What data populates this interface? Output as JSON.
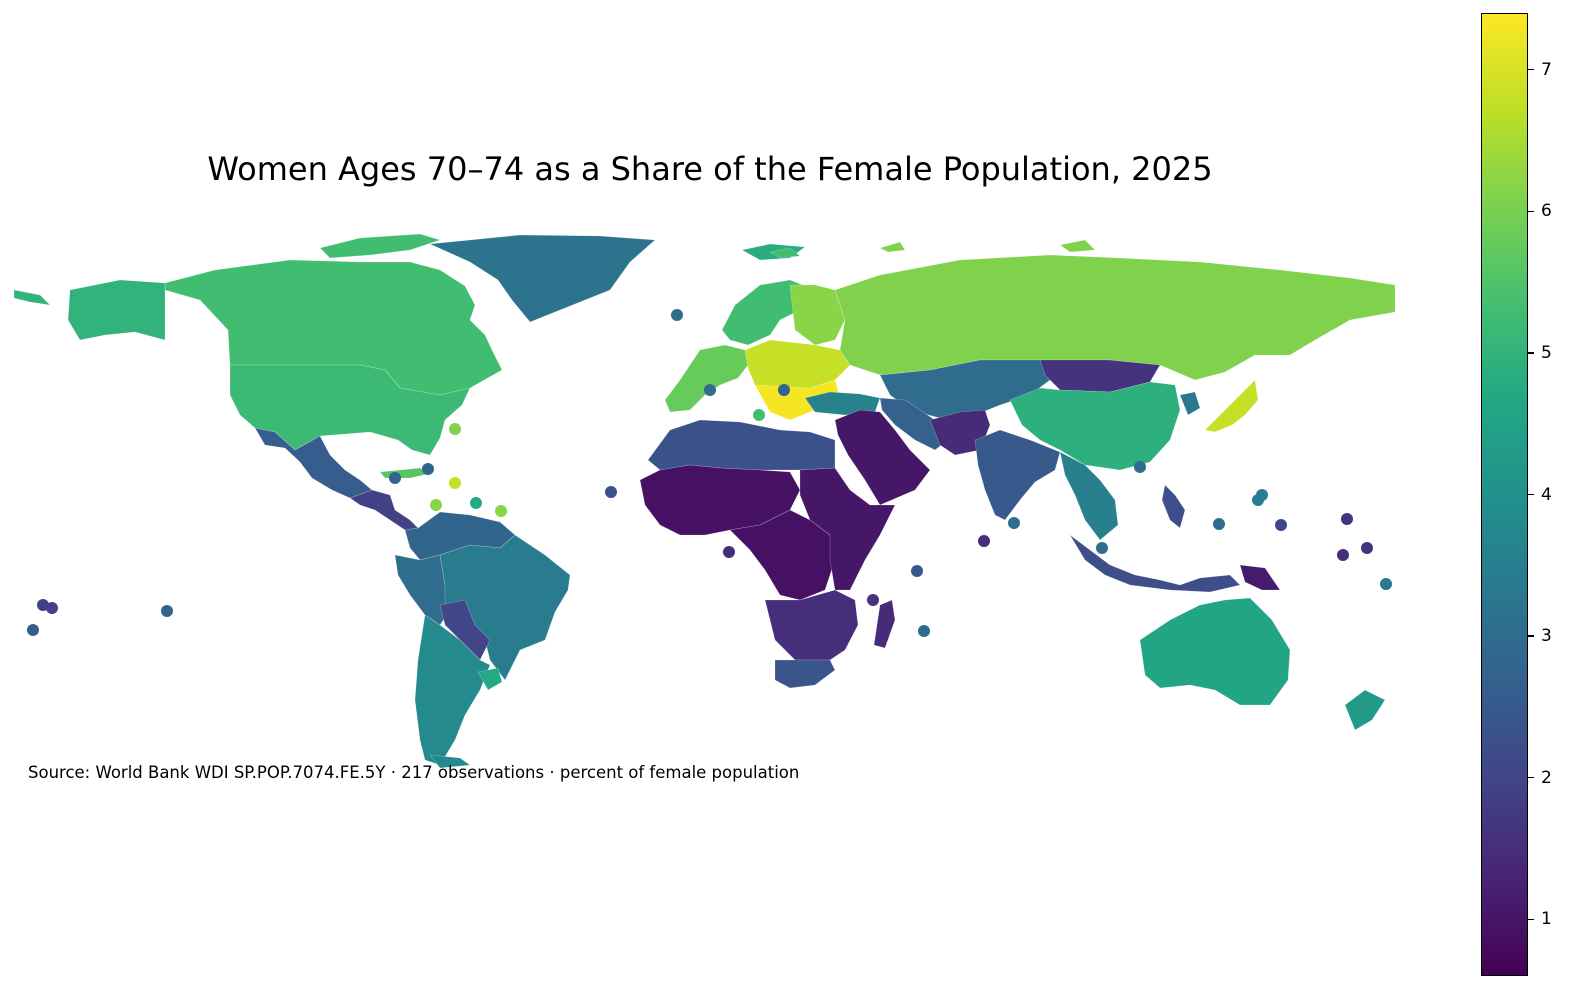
{
  "title": "Women Ages 70–74 as a Share of the Female Population, 2025",
  "source_note": "Source: World Bank WDI SP.POP.7074.FE.5Y · 217 observations · percent of female population",
  "colorbar": {
    "colormap": "viridis",
    "min": 0.6,
    "max": 7.4,
    "ticks": [
      {
        "value": 1,
        "label": "1"
      },
      {
        "value": 2,
        "label": "2"
      },
      {
        "value": 3,
        "label": "3"
      },
      {
        "value": 4,
        "label": "4"
      },
      {
        "value": 5,
        "label": "5"
      },
      {
        "value": 6,
        "label": "6"
      },
      {
        "value": 7,
        "label": "7"
      }
    ]
  },
  "chart_data": {
    "type": "choropleth",
    "title": "Women Ages 70–74 as a Share of the Female Population, 2025",
    "unit": "percent of female population",
    "observations": 217,
    "value_range": [
      0.6,
      7.4
    ],
    "regions": [
      {
        "region": "Greenland",
        "value": 3.2
      },
      {
        "region": "Canada",
        "value": 5.3
      },
      {
        "region": "Alaska (USA)",
        "value": 5.0
      },
      {
        "region": "United States",
        "value": 5.2
      },
      {
        "region": "Mexico",
        "value": 2.6
      },
      {
        "region": "Central America",
        "value": 1.9
      },
      {
        "region": "Cuba",
        "value": 5.6
      },
      {
        "region": "Colombia / Venezuela",
        "value": 2.8
      },
      {
        "region": "Peru / Ecuador",
        "value": 3.0
      },
      {
        "region": "Brazil",
        "value": 3.4
      },
      {
        "region": "Bolivia",
        "value": 2.0
      },
      {
        "region": "Chile / Argentina",
        "value": 3.8
      },
      {
        "region": "Uruguay",
        "value": 4.7
      },
      {
        "region": "Iceland",
        "value": 4.8
      },
      {
        "region": "Scandinavia",
        "value": 5.3
      },
      {
        "region": "Finland / Baltics",
        "value": 6.2
      },
      {
        "region": "Western Europe",
        "value": 5.8
      },
      {
        "region": "Central Europe",
        "value": 6.8
      },
      {
        "region": "Balkans / Hungary",
        "value": 7.3
      },
      {
        "region": "Russia",
        "value": 6.1
      },
      {
        "region": "Turkey",
        "value": 3.6
      },
      {
        "region": "Kazakhstan / Central Asia",
        "value": 3.0
      },
      {
        "region": "Mongolia",
        "value": 1.6
      },
      {
        "region": "China",
        "value": 4.9
      },
      {
        "region": "Japan",
        "value": 6.8
      },
      {
        "region": "Korea",
        "value": 3.3
      },
      {
        "region": "Iran",
        "value": 2.7
      },
      {
        "region": "Afghanistan / Pakistan",
        "value": 1.4
      },
      {
        "region": "Arabian Peninsula",
        "value": 1.0
      },
      {
        "region": "India",
        "value": 2.5
      },
      {
        "region": "Southeast Asia",
        "value": 3.5
      },
      {
        "region": "Indonesia",
        "value": 2.2
      },
      {
        "region": "Papua New Guinea",
        "value": 1.1
      },
      {
        "region": "Australia",
        "value": 4.6
      },
      {
        "region": "New Zealand",
        "value": 4.3
      },
      {
        "region": "North Africa",
        "value": 2.3
      },
      {
        "region": "Sahel / West Africa",
        "value": 0.9
      },
      {
        "region": "Central Africa",
        "value": 0.9
      },
      {
        "region": "East Africa",
        "value": 1.0
      },
      {
        "region": "Southern Africa",
        "value": 1.5
      },
      {
        "region": "South Africa",
        "value": 2.4
      },
      {
        "region": "Madagascar",
        "value": 1.4
      }
    ]
  }
}
